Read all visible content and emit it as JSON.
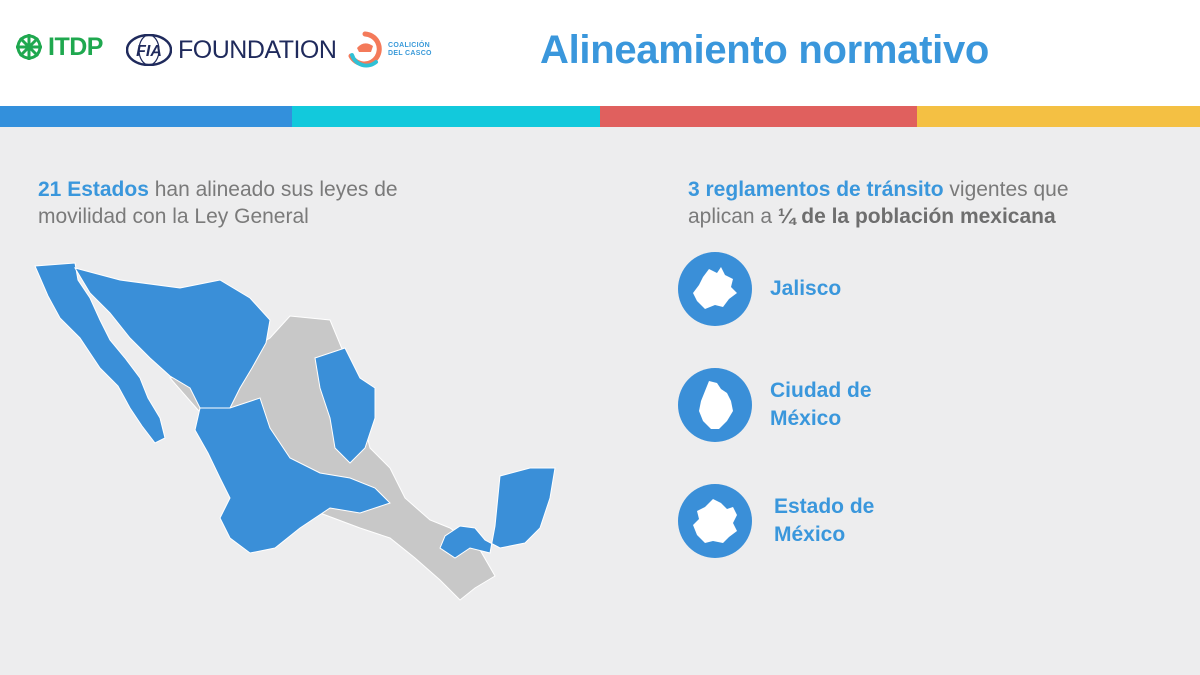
{
  "header": {
    "logos": {
      "itdp": "ITDP",
      "fia_badge": "FIA",
      "fia_text": "FOUNDATION",
      "casco_line1": "COALICIÓN",
      "casco_line2": "DEL CASCO"
    },
    "title": "Alineamiento normativo"
  },
  "colors": {
    "accent": "#3a97dc",
    "stripe_blue": "#3390dc",
    "stripe_cyan": "#12c9dc",
    "stripe_red": "#e0605e",
    "stripe_yellow": "#f4c043",
    "map_blue": "#3a8fd8",
    "map_grey": "#c8c8c8"
  },
  "left": {
    "highlight": "21 Estados",
    "text1": " han alineado sus leyes de",
    "text2": "movilidad con la Ley General"
  },
  "right": {
    "highlight": "3 reglamentos de tránsito",
    "text1": " vigentes que",
    "text2": "aplican a ",
    "bold": "¼ de la población mexicana"
  },
  "states": [
    {
      "line1": "Jalisco",
      "line2": "",
      "icon": "jalisco-shape-icon"
    },
    {
      "line1": "Ciudad de",
      "line2": "México",
      "icon": "cdmx-shape-icon"
    },
    {
      "line1": "Estado de",
      "line2": "México",
      "icon": "edomex-shape-icon"
    }
  ]
}
